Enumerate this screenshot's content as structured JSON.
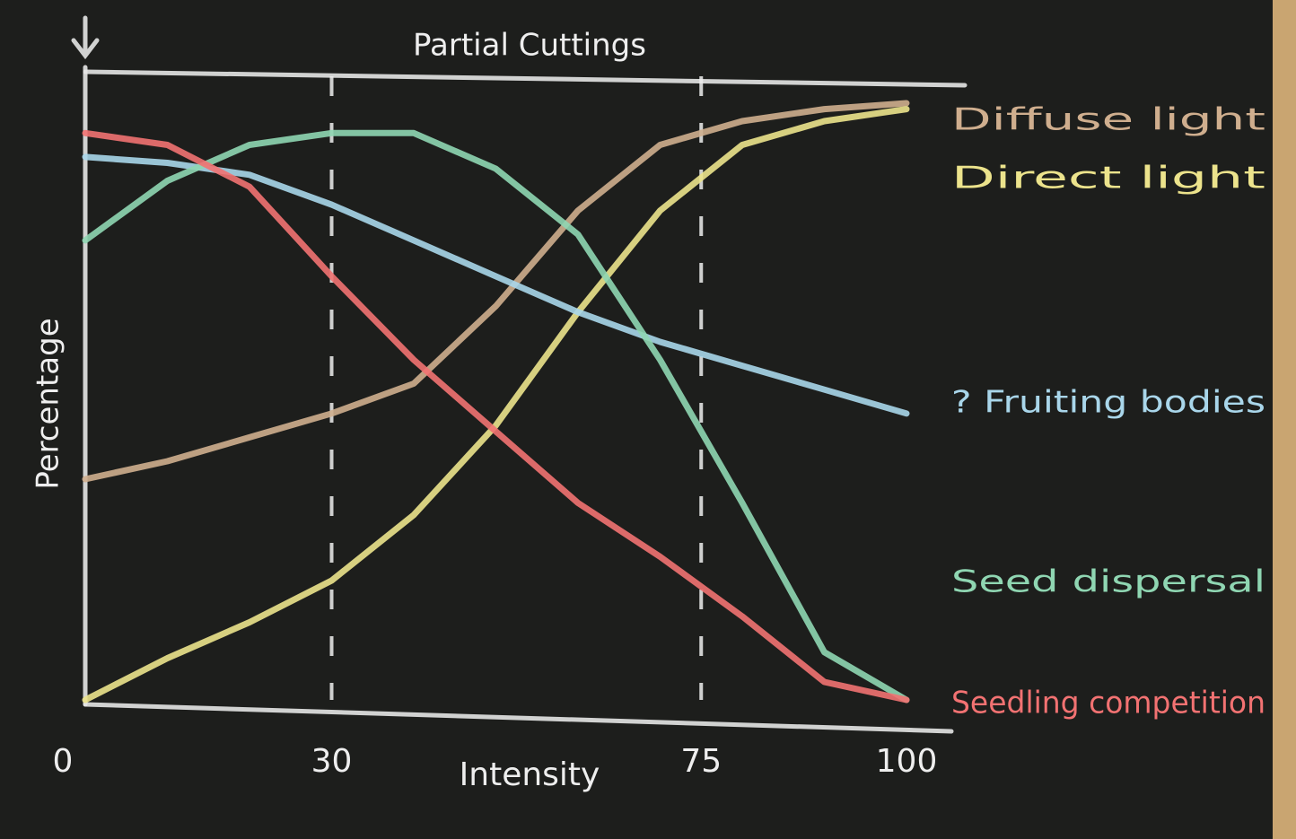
{
  "chart_data": {
    "type": "line",
    "annotation": "Partial Cuttings",
    "x_label": "Intensity",
    "y_label": "Percentage",
    "x": [
      0,
      10,
      20,
      30,
      40,
      50,
      60,
      70,
      80,
      90,
      100
    ],
    "xlim": [
      0,
      100
    ],
    "xticks": [
      0,
      30,
      75,
      100
    ],
    "ylim": [
      0,
      100
    ],
    "dashed_lines": [
      30,
      75
    ],
    "series": [
      {
        "name": "Diffuse light",
        "color": "#cfae8e",
        "values": [
          37,
          40,
          44,
          48,
          53,
          66,
          82,
          93,
          97,
          99,
          100
        ]
      },
      {
        "name": "Direct light",
        "color": "#ece38c",
        "values": [
          0,
          7,
          13,
          20,
          31,
          46,
          65,
          82,
          93,
          97,
          99
        ]
      },
      {
        "name": "? Fruiting bodies",
        "color": "#a9d6ea",
        "values": [
          91,
          90,
          88,
          83,
          77,
          71,
          65,
          60,
          56,
          52,
          48
        ]
      },
      {
        "name": "Seed dispersal",
        "color": "#8fd6b2",
        "values": [
          77,
          87,
          93,
          95,
          95,
          89,
          78,
          57,
          33,
          8,
          0
        ]
      },
      {
        "name": "Seedling competition",
        "color": "#f27272",
        "values": [
          95,
          93,
          86,
          71,
          57,
          45,
          33,
          24,
          14,
          3,
          0
        ]
      }
    ]
  }
}
